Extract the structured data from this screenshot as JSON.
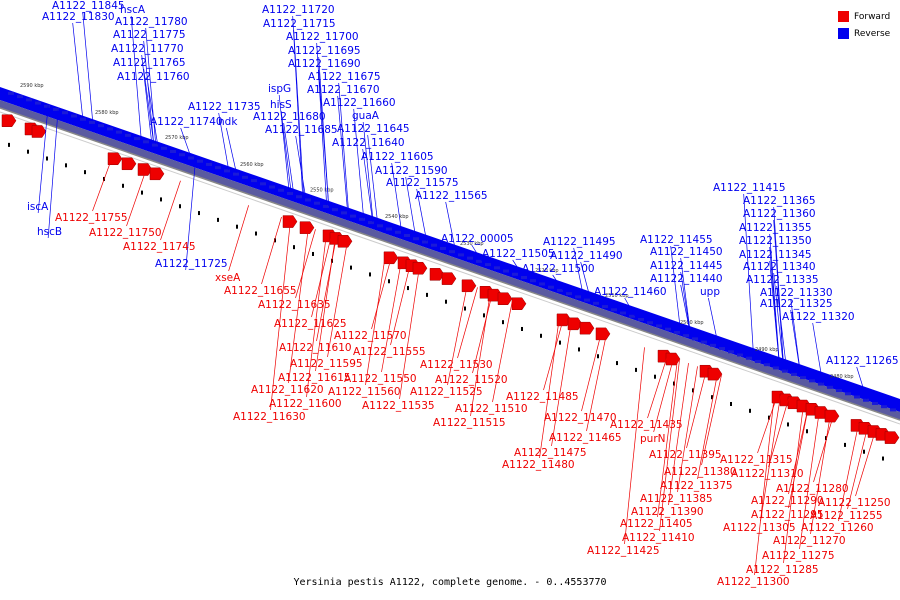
{
  "caption": "Yersinia pestis A1122, complete genome. - 0..4553770",
  "legend": [
    {
      "label": "Forward",
      "color": "#ee0000"
    },
    {
      "label": "Reverse",
      "color": "#0000ee"
    }
  ],
  "colors": {
    "forward": "#ee0000",
    "reverse": "#0000ee",
    "backbone": "#888888"
  },
  "ticks": [
    "2590 kbp",
    "2580 kbp",
    "2570 kbp",
    "2560 kbp",
    "2550 kbp",
    "2540 kbp",
    "2530 kbp",
    "2520 kbp",
    "2510 kbp",
    "2500 kbp",
    "2490 kbp",
    "2480 kbp"
  ],
  "reverse_labels": [
    "A1122_11845",
    "A1122_11830",
    "hscA",
    "A1122_11780",
    "A1122_11775",
    "A1122_11770",
    "A1122_11765",
    "A1122_11760",
    "A1122_11720",
    "A1122_11715",
    "A1122_11700",
    "A1122_11695",
    "A1122_11690",
    "A1122_11675",
    "A1122_11670",
    "A1122_11660",
    "ispG",
    "hisS",
    "A1122_11680",
    "A1122_11685",
    "guaA",
    "A1122_11645",
    "A1122_11640",
    "A1122_11605",
    "A1122_11590",
    "A1122_11575",
    "A1122_11565",
    "A1122_11735",
    "A1122_11740",
    "ndk",
    "iscA",
    "hscB",
    "A1122_11725",
    "A1122_00005",
    "A1122_11505",
    "A1122_11495",
    "A1122_11490",
    "A1122_11500",
    "A1122_11460",
    "A1122_11455",
    "A1122_11450",
    "A1122_11445",
    "A1122_11440",
    "upp",
    "A1122_11415",
    "A1122_11365",
    "A1122_11360",
    "A1122_11355",
    "A1122_11350",
    "A1122_11345",
    "A1122_11340",
    "A1122_11335",
    "A1122_11330",
    "A1122_11325",
    "A1122_11320",
    "A1122_11265"
  ],
  "forward_labels": [
    "A1122_11755",
    "A1122_11750",
    "A1122_11745",
    "xseA",
    "A1122_11655",
    "A1122_11635",
    "A1122_11625",
    "A1122_11610",
    "A1122_11615",
    "A1122_11620",
    "A1122_11600",
    "A1122_11630",
    "A1122_11595",
    "A1122_11570",
    "A1122_11555",
    "A1122_11550",
    "A1122_11560",
    "A1122_11535",
    "A1122_11530",
    "A1122_11520",
    "A1122_11525",
    "A1122_11510",
    "A1122_11515",
    "A1122_11485",
    "A1122_11470",
    "A1122_11465",
    "A1122_11475",
    "A1122_11480",
    "A1122_11435",
    "purN",
    "A1122_11395",
    "A1122_11380",
    "A1122_11375",
    "A1122_11385",
    "A1122_11390",
    "A1122_11405",
    "A1122_11410",
    "A1122_11425",
    "A1122_11315",
    "A1122_11310",
    "A1122_11280",
    "A1122_11290",
    "A1122_11295",
    "A1122_11305",
    "A1122_11270",
    "A1122_11275",
    "A1122_11285",
    "A1122_11300",
    "A1122_11260",
    "A1122_11255",
    "A1122_11250"
  ]
}
